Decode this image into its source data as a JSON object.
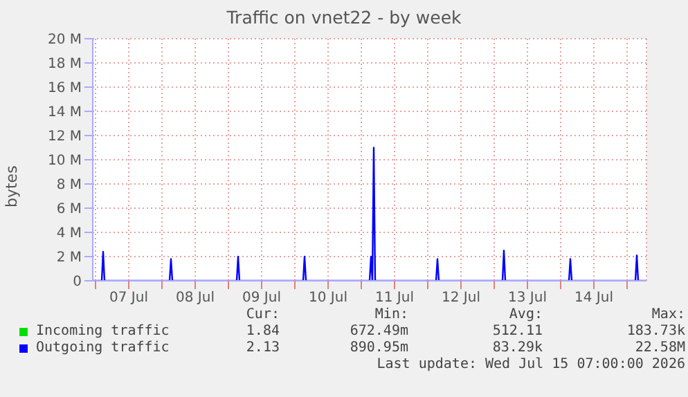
{
  "chart_data": {
    "type": "line",
    "title": "Traffic on vnet22 - by week",
    "ylabel": "bytes",
    "xlim": [
      "2026-07-06T23:00",
      "2026-07-15T07:00"
    ],
    "xticks": [
      {
        "value": "2026-07-07T00:00",
        "label": null
      },
      {
        "value": "2026-07-07T12:00",
        "label": "07 Jul"
      },
      {
        "value": "2026-07-08T00:00",
        "label": null
      },
      {
        "value": "2026-07-08T12:00",
        "label": "08 Jul"
      },
      {
        "value": "2026-07-09T00:00",
        "label": null
      },
      {
        "value": "2026-07-09T12:00",
        "label": "09 Jul"
      },
      {
        "value": "2026-07-10T00:00",
        "label": null
      },
      {
        "value": "2026-07-10T12:00",
        "label": "10 Jul"
      },
      {
        "value": "2026-07-11T00:00",
        "label": null
      },
      {
        "value": "2026-07-11T12:00",
        "label": "11 Jul"
      },
      {
        "value": "2026-07-12T00:00",
        "label": null
      },
      {
        "value": "2026-07-12T12:00",
        "label": "12 Jul"
      },
      {
        "value": "2026-07-13T00:00",
        "label": null
      },
      {
        "value": "2026-07-13T12:00",
        "label": "13 Jul"
      },
      {
        "value": "2026-07-14T00:00",
        "label": null
      },
      {
        "value": "2026-07-14T12:00",
        "label": "14 Jul"
      },
      {
        "value": "2026-07-15T00:00",
        "label": null
      }
    ],
    "ylim": [
      0,
      20000000
    ],
    "yticks": [
      {
        "value": 0,
        "label": "0"
      },
      {
        "value": 2000000,
        "label": "2 M"
      },
      {
        "value": 4000000,
        "label": "4 M"
      },
      {
        "value": 6000000,
        "label": "6 M"
      },
      {
        "value": 8000000,
        "label": "8 M"
      },
      {
        "value": 10000000,
        "label": "10 M"
      },
      {
        "value": 12000000,
        "label": "12 M"
      },
      {
        "value": 14000000,
        "label": "14 M"
      },
      {
        "value": 16000000,
        "label": "16 M"
      },
      {
        "value": 18000000,
        "label": "18 M"
      },
      {
        "value": 20000000,
        "label": "20 M"
      }
    ],
    "grid": true,
    "legend": "bottom",
    "marker": "none",
    "line_style": "solid",
    "series": [
      {
        "name": "Incoming traffic",
        "color": "#00e000"
      },
      {
        "name": "Outgoing traffic",
        "color": "#0000ff",
        "x": [
          "2026-07-06T23:00",
          "2026-07-07T02:15",
          "2026-07-07T02:45",
          "2026-07-07T03:15",
          "2026-07-08T02:45",
          "2026-07-08T03:15",
          "2026-07-08T03:45",
          "2026-07-09T03:00",
          "2026-07-09T03:30",
          "2026-07-09T04:00",
          "2026-07-10T03:00",
          "2026-07-10T03:30",
          "2026-07-10T04:00",
          "2026-07-11T03:00",
          "2026-07-11T03:30",
          "2026-07-11T04:00",
          "2026-07-11T04:30",
          "2026-07-11T05:00",
          "2026-07-12T03:00",
          "2026-07-12T03:30",
          "2026-07-12T04:00",
          "2026-07-13T03:00",
          "2026-07-13T03:30",
          "2026-07-13T04:00",
          "2026-07-14T03:00",
          "2026-07-14T03:30",
          "2026-07-14T04:00",
          "2026-07-15T03:00",
          "2026-07-15T03:30",
          "2026-07-15T04:00",
          "2026-07-15T07:00"
        ],
        "values": [
          0,
          0,
          2400000,
          0,
          0,
          1800000,
          0,
          0,
          2000000,
          0,
          0,
          2000000,
          0,
          0,
          2000000,
          0,
          11000000,
          0,
          0,
          1800000,
          0,
          0,
          2500000,
          0,
          0,
          1800000,
          0,
          0,
          2100000,
          0,
          0
        ]
      }
    ],
    "annotations": [
      "Cur:",
      "Min:",
      "Avg:",
      "Max:",
      "1.84",
      "672.49m",
      "512.11",
      "183.73k",
      "2.13",
      "890.95m",
      "83.29k",
      "22.58M",
      "Last update: Wed Jul 15 07:00:00 2026"
    ]
  }
}
